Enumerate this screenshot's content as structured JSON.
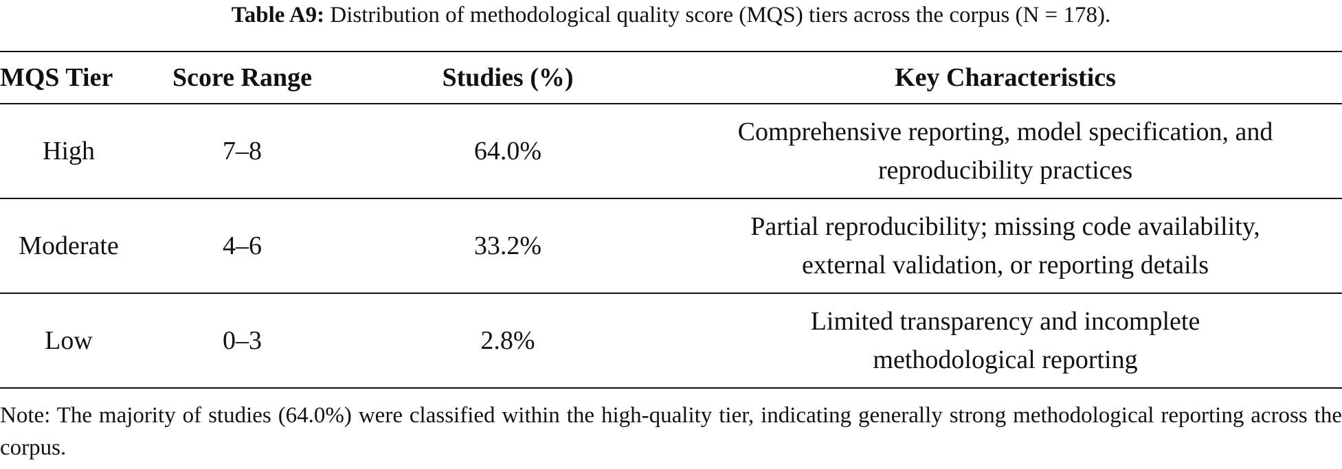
{
  "caption": {
    "label": "Table A9:",
    "text": "Distribution of methodological quality score (MQS) tiers across the corpus (N = 178)."
  },
  "table": {
    "headers": [
      "MQS Tier",
      "Score Range",
      "Studies (%)",
      "Key Characteristics"
    ],
    "rows": [
      {
        "tier": "High",
        "range": "7–8",
        "studies": "64.0%",
        "characteristics_line1": "Comprehensive reporting, model specification, and",
        "characteristics_line2": "reproducibility practices"
      },
      {
        "tier": "Moderate",
        "range": "4–6",
        "studies": "33.2%",
        "characteristics_line1": "Partial reproducibility; missing code availability,",
        "characteristics_line2": "external validation, or reporting details"
      },
      {
        "tier": "Low",
        "range": "0–3",
        "studies": "2.8%",
        "characteristics_line1": "Limited transparency and incomplete",
        "characteristics_line2": "methodological reporting"
      }
    ]
  },
  "note": "Note: The majority of studies (64.0%) were classified within the high-quality tier, indicating generally strong methodological reporting across the corpus."
}
